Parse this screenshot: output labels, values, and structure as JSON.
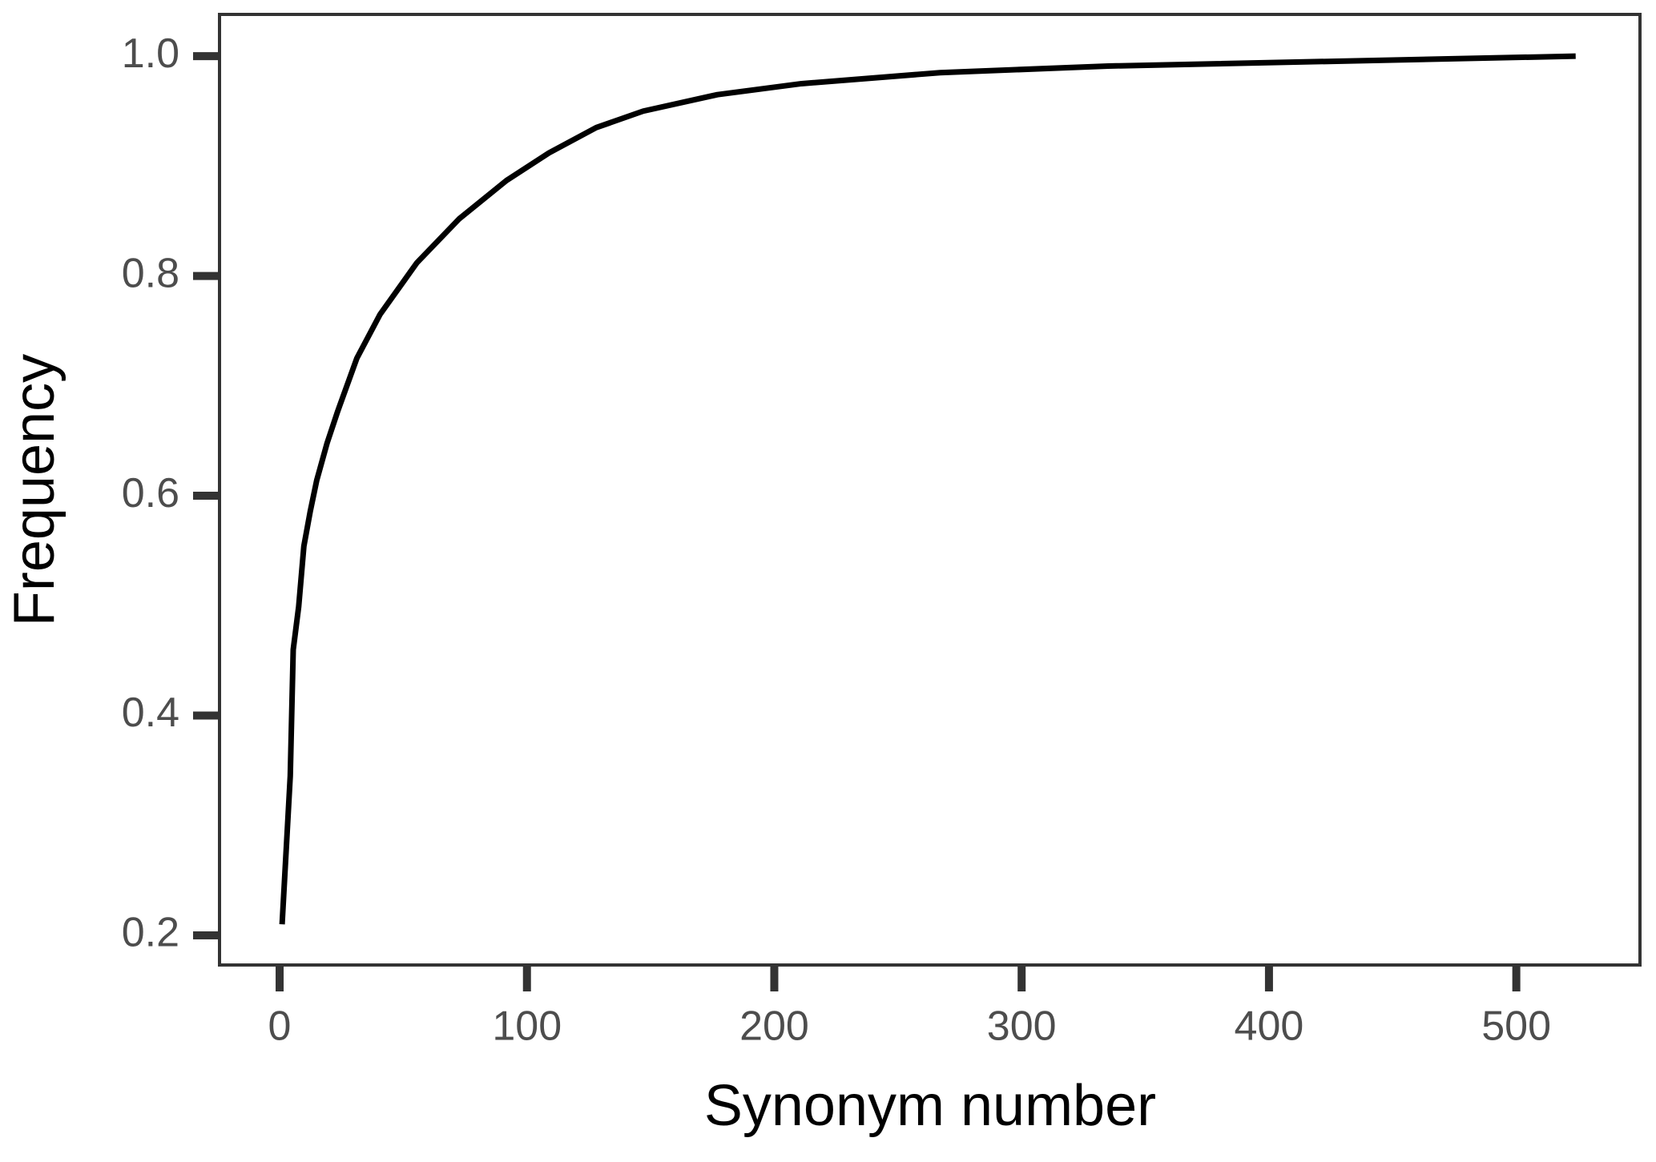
{
  "chart_data": {
    "type": "line",
    "x_label": "Synonym number",
    "y_label": "Frequency",
    "x": [
      1,
      4.3,
      5.5,
      7.7,
      9.8,
      12.4,
      15,
      19.2,
      23.5,
      31.2,
      40.6,
      55.5,
      72.6,
      91.8,
      108.9,
      128,
      147,
      177,
      211,
      267,
      335,
      524
    ],
    "series": [
      {
        "name": "Frequency",
        "color": "#000000",
        "values": [
          0.21,
          0.345,
          0.46,
          0.499,
          0.554,
          0.586,
          0.614,
          0.648,
          0.677,
          0.725,
          0.765,
          0.812,
          0.852,
          0.887,
          0.912,
          0.935,
          0.95,
          0.965,
          0.975,
          0.985,
          0.991,
          1.0
        ]
      }
    ],
    "xlim": [
      -24.3,
      550
    ],
    "ylim": [
      0.173,
      1.038
    ],
    "xticks": [
      0,
      100,
      200,
      300,
      400,
      500
    ],
    "yticks": [
      {
        "value": 0.2,
        "label": "0.2"
      },
      {
        "value": 0.4,
        "label": "0.4"
      },
      {
        "value": 0.6,
        "label": "0.6"
      },
      {
        "value": 0.8,
        "label": "0.8"
      },
      {
        "value": 1.0,
        "label": "1.0"
      }
    ]
  }
}
